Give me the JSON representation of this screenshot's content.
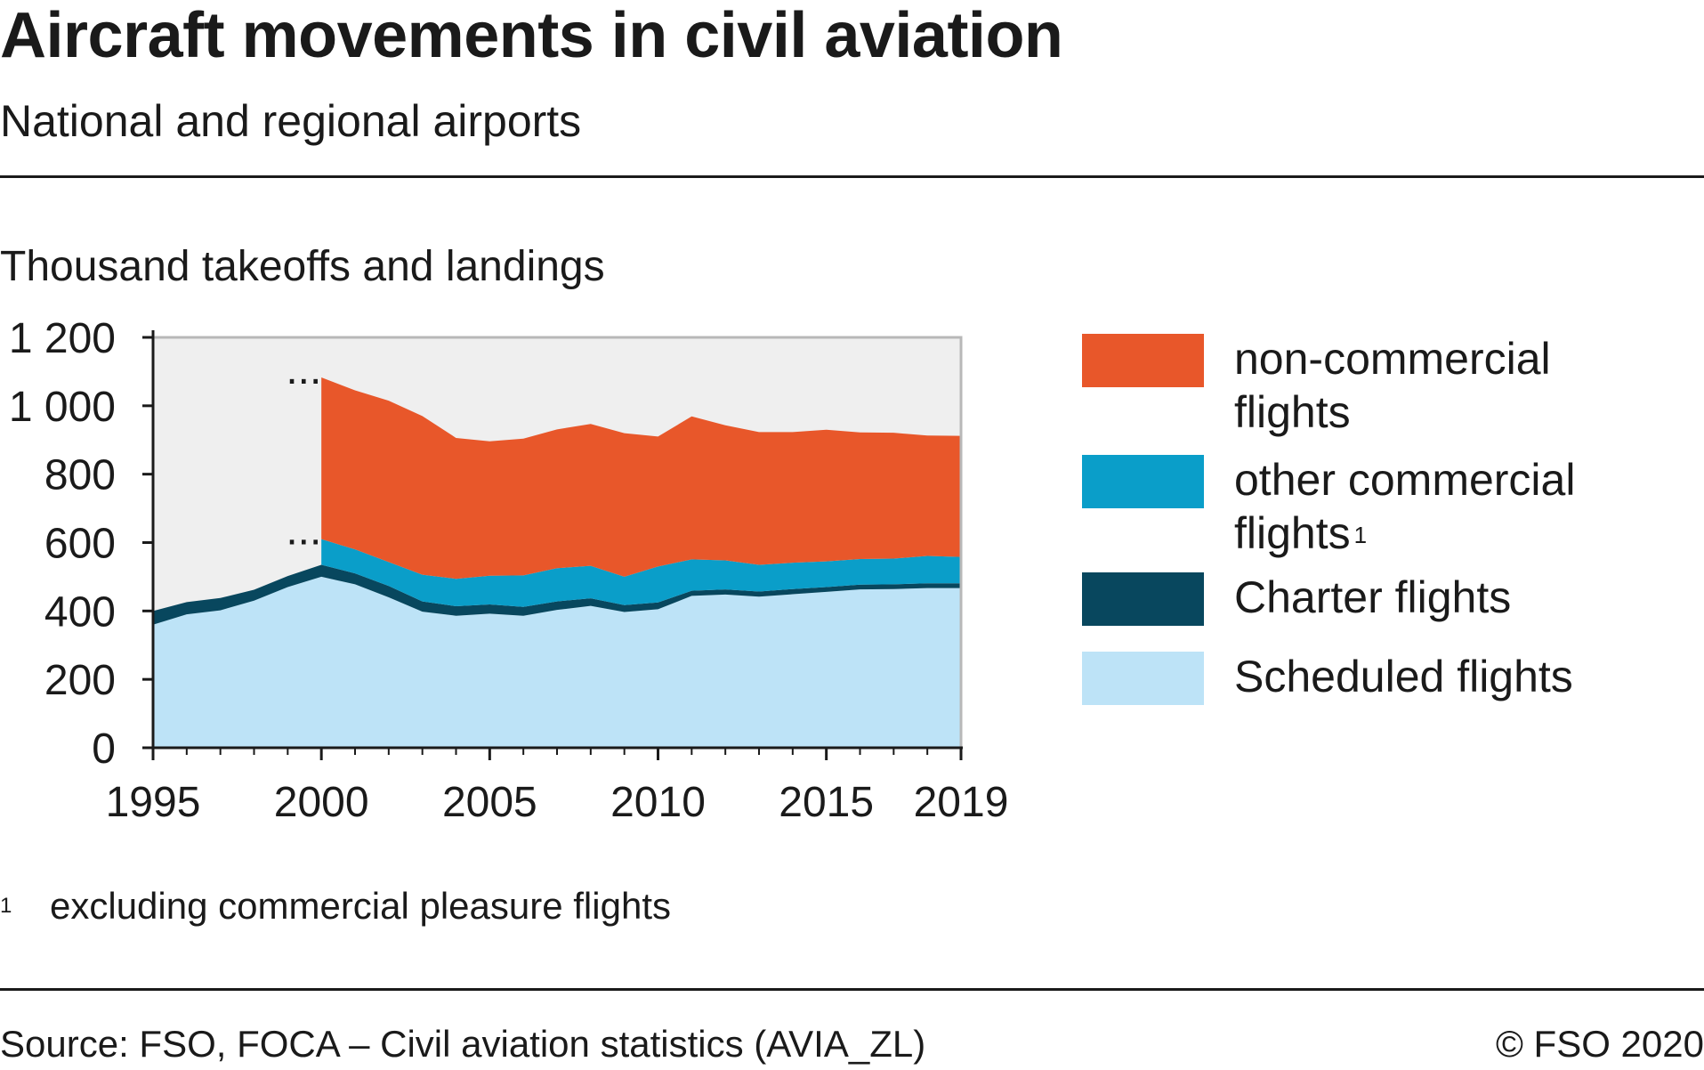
{
  "header": {
    "title": "Aircraft movements in civil aviation",
    "subtitle": "National and regional airports"
  },
  "unit_label": "Thousand takeoffs and landings",
  "legend": {
    "items": [
      {
        "label": "non-commercial flights",
        "footnote": "",
        "color": "#e8572a"
      },
      {
        "label": "other commercial flights",
        "footnote": "1",
        "color": "#0a9ec9"
      },
      {
        "label": "Charter flights",
        "footnote": "",
        "color": "#08475e"
      },
      {
        "label": "Scheduled flights",
        "footnote": "",
        "color": "#bde3f7"
      }
    ]
  },
  "footnote": {
    "marker": "1",
    "text": "excluding commercial pleasure flights"
  },
  "footer": {
    "source": "Source: FSO, FOCA – Civil aviation statistics (AVIA_ZL)",
    "copyright": "© FSO 2020"
  },
  "chart_data": {
    "type": "area",
    "stacked": true,
    "title": "Aircraft movements in civil aviation",
    "subtitle": "National and regional airports",
    "ylabel": "Thousand takeoffs and landings",
    "xlabel": "",
    "ylim": [
      0,
      1200
    ],
    "xlim": [
      1995,
      2019
    ],
    "y_ticks": [
      0,
      200,
      400,
      600,
      800,
      1000,
      1200
    ],
    "y_tick_labels": [
      "0",
      "200",
      "400",
      "600",
      "800",
      "1 000",
      "1 200"
    ],
    "x_ticks": [
      1995,
      2000,
      2005,
      2010,
      2015,
      2019
    ],
    "x_tick_labels": [
      "1995",
      "2000",
      "2005",
      "2010",
      "2015",
      "2019"
    ],
    "grid": false,
    "plot_background": "#efefef",
    "legend_position": "right",
    "missing_marker": "...",
    "missing_markers_at": [
      {
        "x": 1999,
        "y": 1080
      },
      {
        "x": 1999,
        "y": 610
      }
    ],
    "x": [
      1995,
      1996,
      1997,
      1998,
      1999,
      2000,
      2001,
      2002,
      2003,
      2004,
      2005,
      2006,
      2007,
      2008,
      2009,
      2010,
      2011,
      2012,
      2013,
      2014,
      2015,
      2016,
      2017,
      2018,
      2019
    ],
    "series": [
      {
        "name": "Scheduled flights",
        "color": "#bde3f7",
        "values": [
          360,
          390,
          402,
          430,
          470,
          500,
          478,
          440,
          398,
          386,
          392,
          386,
          403,
          415,
          397,
          405,
          444,
          448,
          442,
          449,
          456,
          463,
          464,
          467,
          467
        ]
      },
      {
        "name": "Charter flights",
        "color": "#08475e",
        "values": [
          40,
          36,
          36,
          32,
          32,
          35,
          32,
          33,
          30,
          28,
          27,
          26,
          25,
          22,
          20,
          20,
          15,
          15,
          15,
          15,
          14,
          14,
          14,
          14,
          14
        ]
      },
      {
        "name": "other commercial flights",
        "color": "#0a9ec9",
        "values": [
          null,
          null,
          null,
          null,
          null,
          75,
          70,
          70,
          78,
          80,
          84,
          92,
          97,
          95,
          83,
          105,
          92,
          85,
          78,
          77,
          75,
          75,
          75,
          80,
          77
        ]
      },
      {
        "name": "non-commercial flights",
        "color": "#e8572a",
        "values": [
          null,
          null,
          null,
          null,
          null,
          473,
          465,
          472,
          464,
          412,
          393,
          400,
          406,
          415,
          420,
          380,
          418,
          395,
          388,
          382,
          385,
          370,
          368,
          352,
          354
        ]
      }
    ]
  }
}
